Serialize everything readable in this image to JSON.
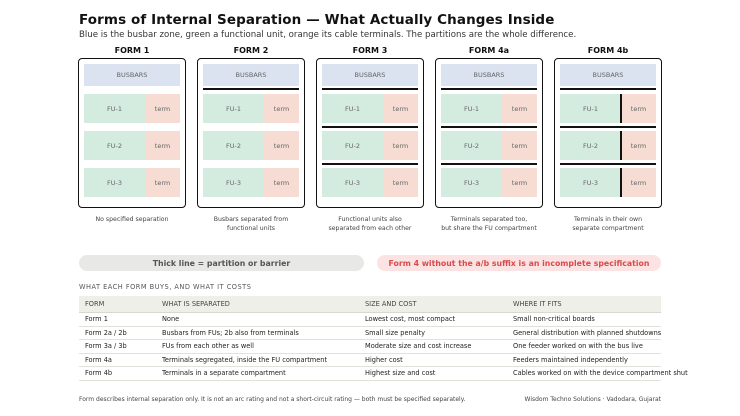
{
  "header": {
    "title": "Forms of Internal Separation — What Actually Changes Inside",
    "subtitle": "Blue is the busbar zone, green a functional unit, orange its cable terminals. The partitions are the whole difference."
  },
  "cabinet_labels": {
    "busbars": "BUSBARS",
    "fu1": "FU-1",
    "fu2": "FU-2",
    "fu3": "FU-3",
    "term": "term"
  },
  "forms": [
    {
      "label": "FORM 1",
      "desc1": "No specified separation",
      "desc2": ""
    },
    {
      "label": "FORM 2",
      "desc1": "Busbars separated from",
      "desc2": "functional units"
    },
    {
      "label": "FORM 3",
      "desc1": "Functional units also",
      "desc2": "separated from each other"
    },
    {
      "label": "FORM 4a",
      "desc1": "Terminals separated too,",
      "desc2": "but share the FU compartment"
    },
    {
      "label": "FORM 4b",
      "desc1": "Terminals in their own",
      "desc2": "separate compartment"
    }
  ],
  "legend": {
    "thick_line": "Thick line = partition or barrier",
    "warning": "Form 4 without the a/b suffix is an incomplete specification"
  },
  "table": {
    "section_title": "WHAT EACH FORM BUYS, AND WHAT IT COSTS",
    "headers": [
      "FORM",
      "WHAT IS SEPARATED",
      "SIZE AND COST",
      "WHERE IT FITS"
    ],
    "rows": [
      [
        "Form 1",
        "None",
        "Lowest cost, most compact",
        "Small non-critical boards"
      ],
      [
        "Form 2a / 2b",
        "Busbars from FUs; 2b also from terminals",
        "Small size penalty",
        "General distribution with planned shutdowns"
      ],
      [
        "Form 3a / 3b",
        "FUs from each other as well",
        "Moderate size and cost increase",
        "One feeder worked on with the bus live"
      ],
      [
        "Form 4a",
        "Terminals segregated, inside the FU compartment",
        "Higher cost",
        "Feeders maintained independently"
      ],
      [
        "Form 4b",
        "Terminals in a separate compartment",
        "Highest size and cost",
        "Cables worked on with the device compartment shut"
      ]
    ]
  },
  "footer": {
    "note": "Form describes internal separation only. It is not an arc rating and not a short-circuit rating — both must be specified separately.",
    "credit": "Wisdom Techno Solutions · Vadodara, Gujarat"
  },
  "colors": {
    "busbar": "#dbe3f0",
    "functional_unit": "#d4ebe0",
    "terminal": "#f6dcd2",
    "warning": "#d94b4b"
  }
}
